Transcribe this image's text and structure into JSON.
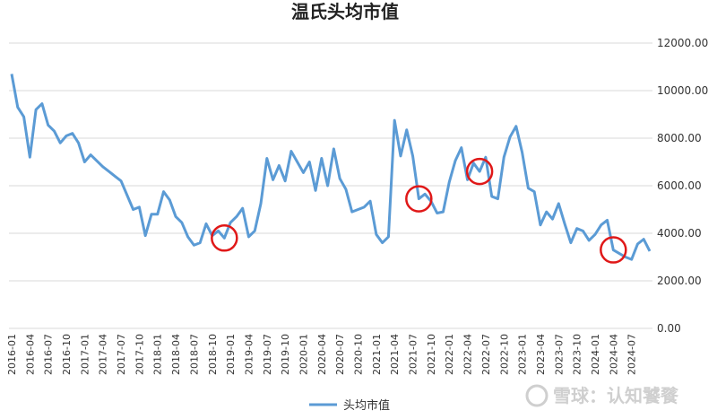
{
  "chart_data": {
    "type": "line",
    "title": "温氏头均市值",
    "xlabel": "",
    "ylabel": "",
    "ylim": [
      0,
      12000
    ],
    "yticks": [
      "0.00",
      "2000.00",
      "4000.00",
      "6000.00",
      "8000.00",
      "10000.00",
      "12000.00"
    ],
    "ytick_values": [
      0,
      2000,
      4000,
      6000,
      8000,
      10000,
      12000
    ],
    "x_tick_labels": [
      "2016-01",
      "2016-04",
      "2016-07",
      "2016-10",
      "2017-01",
      "2017-04",
      "2017-07",
      "2017-10",
      "2018-01",
      "2018-04",
      "2018-07",
      "2018-10",
      "2019-01",
      "2019-04",
      "2019-07",
      "2019-10",
      "2020-01",
      "2020-04",
      "2020-07",
      "2020-10",
      "2021-01",
      "2021-04",
      "2021-07",
      "2021-10",
      "2022-01",
      "2022-04",
      "2022-07",
      "2022-10",
      "2023-01",
      "2023-04",
      "2023-07",
      "2023-10",
      "2024-01",
      "2024-04",
      "2024-07"
    ],
    "grid": true,
    "legend_position": "bottom",
    "series": [
      {
        "name": "头均市值",
        "color": "#5B9BD5",
        "values": [
          10700,
          9300,
          8900,
          7200,
          9200,
          9450,
          8550,
          8300,
          7800,
          8100,
          8200,
          7800,
          7000,
          7300,
          7050,
          6800,
          6600,
          6400,
          6200,
          5600,
          5000,
          5100,
          3900,
          4800,
          4800,
          5750,
          5400,
          4700,
          4450,
          3850,
          3500,
          3600,
          4400,
          3900,
          4100,
          3800,
          4450,
          4700,
          5050,
          3850,
          4100,
          5250,
          7150,
          6250,
          6850,
          6200,
          7450,
          7000,
          6550,
          7000,
          5800,
          7150,
          6000,
          7550,
          6300,
          5850,
          4900,
          5000,
          5100,
          5350,
          3950,
          3600,
          3850,
          8750,
          7250,
          8350,
          7250,
          5450,
          5650,
          5350,
          4850,
          4900,
          6150,
          7050,
          7600,
          6250,
          6950,
          6600,
          7200,
          5550,
          5450,
          7200,
          8050,
          8500,
          7400,
          5900,
          5750,
          4350,
          4900,
          4600,
          5250,
          4400,
          3600,
          4200,
          4100,
          3700,
          3950,
          4350,
          4550,
          3300,
          3150,
          3000,
          2900,
          3550,
          3750,
          3250
        ]
      }
    ],
    "annotations": [
      {
        "type": "circle",
        "color": "#e01818",
        "at": "2018-12"
      },
      {
        "type": "circle",
        "color": "#e01818",
        "at": "2021-08"
      },
      {
        "type": "circle",
        "color": "#e01818",
        "at": "2022-06"
      },
      {
        "type": "circle",
        "color": "#e01818",
        "at": "2024-04"
      }
    ]
  },
  "watermark": "雪球：认知饕餮"
}
